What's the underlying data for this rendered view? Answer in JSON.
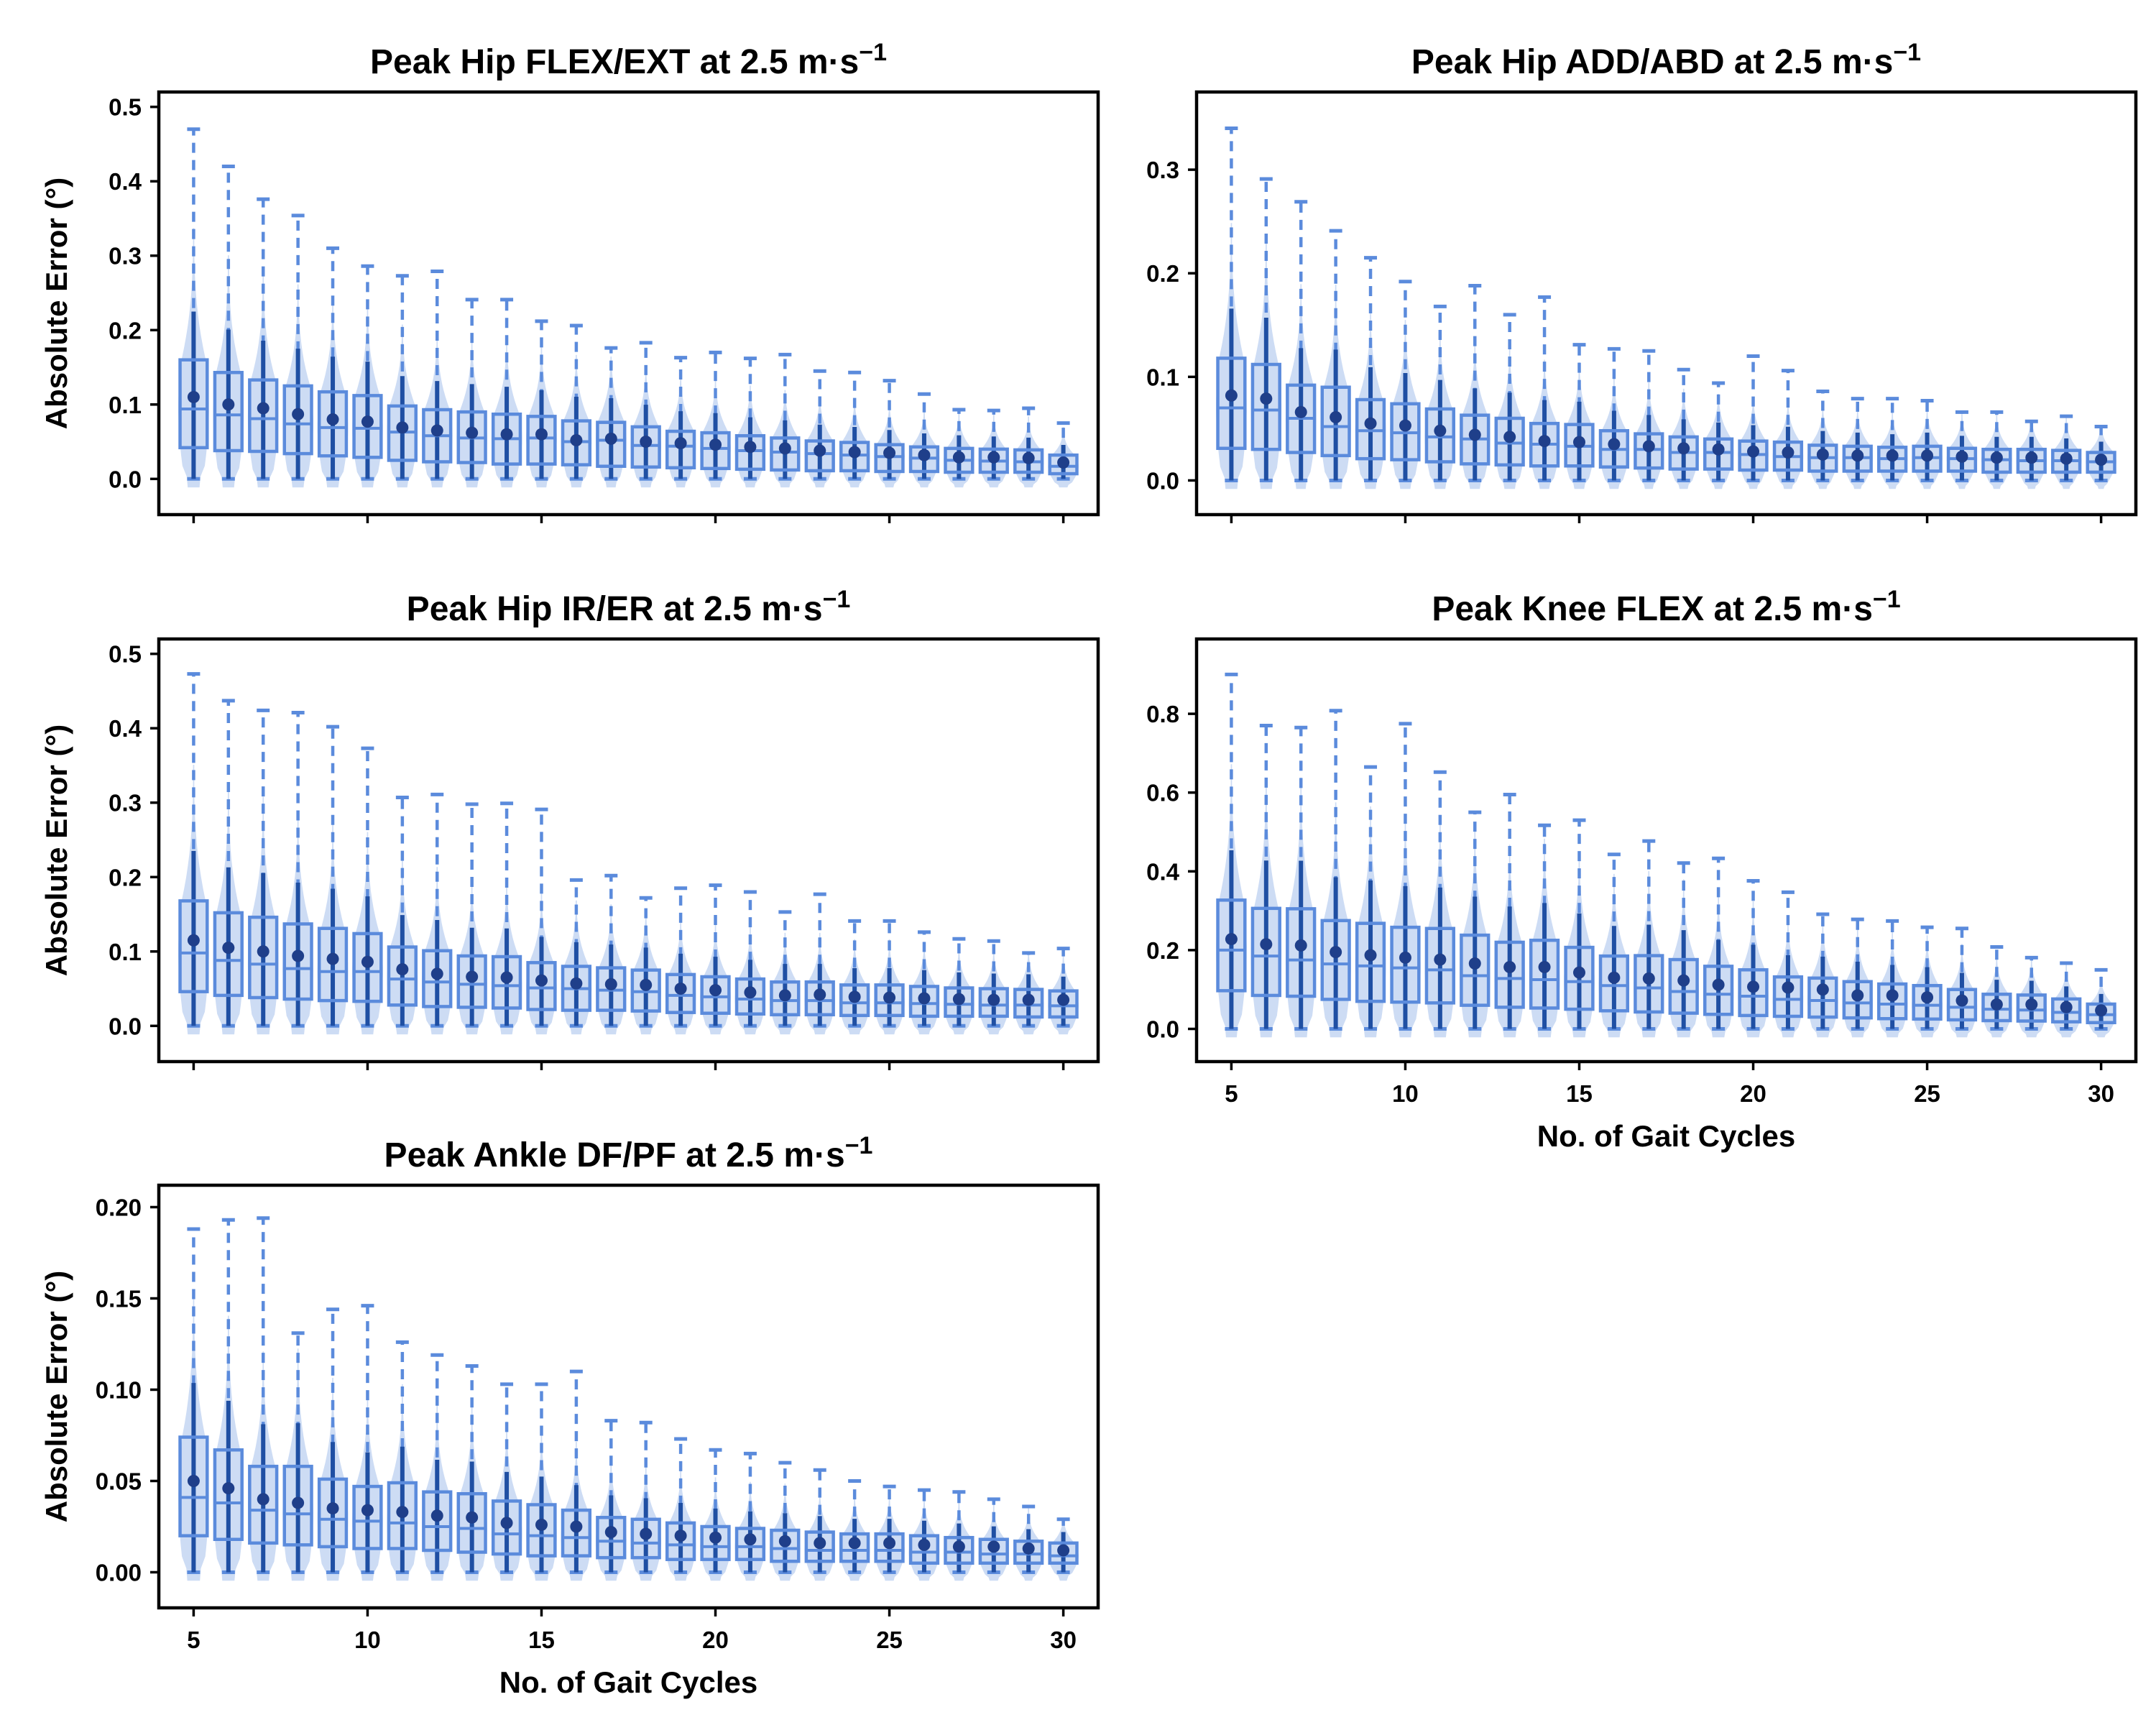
{
  "figure": {
    "x_axis_label": "No. of Gait Cycles",
    "y_axis_label": "Absolute Error (°)"
  },
  "colors": {
    "box_edge": "#5b8bdc",
    "violin_fill": "#c4d6f2",
    "median_line": "#5b8bdc",
    "mean_dot": "#1f3f8a",
    "whisker_band": "#1f4fa3",
    "axis": "#000000"
  },
  "chart_data": [
    {
      "type": "box",
      "title": "Peak Hip FLEX/EXT at 2.5 m·s",
      "title_superscript": "−1",
      "xlabel": "",
      "ylabel": "Absolute Error (°)",
      "x_ticks": [
        5,
        10,
        15,
        20,
        25,
        30
      ],
      "y_ticks": [
        0.0,
        0.1,
        0.2,
        0.3,
        0.4,
        0.5
      ],
      "y_tick_labels": [
        "0.0",
        "0.1",
        "0.2",
        "0.3",
        "0.4",
        "0.5"
      ],
      "ylim": [
        -0.048,
        0.52
      ],
      "x": [
        5,
        6,
        7,
        8,
        9,
        10,
        11,
        12,
        13,
        14,
        15,
        16,
        17,
        18,
        19,
        20,
        21,
        22,
        23,
        24,
        25,
        26,
        27,
        28,
        29,
        30
      ],
      "upper_whisker": [
        0.47,
        0.42,
        0.376,
        0.354,
        0.31,
        0.286,
        0.273,
        0.279,
        0.241,
        0.241,
        0.212,
        0.206,
        0.176,
        0.183,
        0.163,
        0.17,
        0.162,
        0.167,
        0.145,
        0.143,
        0.132,
        0.114,
        0.093,
        0.092,
        0.095,
        0.075
      ],
      "q3": [
        0.16,
        0.143,
        0.133,
        0.125,
        0.117,
        0.112,
        0.098,
        0.093,
        0.09,
        0.087,
        0.084,
        0.078,
        0.076,
        0.07,
        0.064,
        0.062,
        0.058,
        0.055,
        0.051,
        0.049,
        0.046,
        0.043,
        0.041,
        0.04,
        0.039,
        0.032
      ],
      "median": [
        0.094,
        0.086,
        0.081,
        0.074,
        0.069,
        0.068,
        0.063,
        0.058,
        0.055,
        0.054,
        0.055,
        0.05,
        0.052,
        0.045,
        0.044,
        0.041,
        0.038,
        0.036,
        0.034,
        0.032,
        0.03,
        0.028,
        0.025,
        0.024,
        0.023,
        0.017
      ],
      "q1": [
        0.042,
        0.038,
        0.037,
        0.034,
        0.031,
        0.029,
        0.025,
        0.023,
        0.022,
        0.02,
        0.02,
        0.019,
        0.017,
        0.016,
        0.015,
        0.014,
        0.013,
        0.012,
        0.011,
        0.011,
        0.01,
        0.01,
        0.009,
        0.009,
        0.009,
        0.007
      ],
      "mean": [
        0.11,
        0.1,
        0.095,
        0.087,
        0.08,
        0.077,
        0.069,
        0.065,
        0.062,
        0.06,
        0.06,
        0.052,
        0.054,
        0.05,
        0.048,
        0.046,
        0.043,
        0.041,
        0.038,
        0.036,
        0.035,
        0.032,
        0.029,
        0.029,
        0.028,
        0.022
      ],
      "lower_whisker": [
        0,
        0,
        0,
        0,
        0,
        0,
        0,
        0,
        0,
        0,
        0,
        0,
        0,
        0,
        0,
        0,
        0,
        0,
        0,
        0,
        0,
        0,
        0,
        0,
        0,
        0
      ]
    },
    {
      "type": "box",
      "title": "Peak Hip ADD/ABD at 2.5 m·s",
      "title_superscript": "−1",
      "xlabel": "",
      "ylabel": "",
      "x_ticks": [
        5,
        10,
        15,
        20,
        25,
        30
      ],
      "y_ticks": [
        0.0,
        0.1,
        0.2,
        0.3
      ],
      "y_tick_labels": [
        "0.0",
        "0.1",
        "0.2",
        "0.3"
      ],
      "ylim": [
        -0.033,
        0.375
      ],
      "x": [
        5,
        6,
        7,
        8,
        9,
        10,
        11,
        12,
        13,
        14,
        15,
        16,
        17,
        18,
        19,
        20,
        21,
        22,
        23,
        24,
        25,
        26,
        27,
        28,
        29,
        30
      ],
      "upper_whisker": [
        0.34,
        0.291,
        0.269,
        0.241,
        0.215,
        0.192,
        0.168,
        0.188,
        0.16,
        0.177,
        0.131,
        0.127,
        0.125,
        0.107,
        0.094,
        0.12,
        0.106,
        0.086,
        0.079,
        0.079,
        0.077,
        0.066,
        0.066,
        0.057,
        0.062,
        0.052
      ],
      "q3": [
        0.118,
        0.112,
        0.092,
        0.09,
        0.078,
        0.074,
        0.069,
        0.063,
        0.06,
        0.055,
        0.054,
        0.048,
        0.045,
        0.042,
        0.04,
        0.038,
        0.037,
        0.034,
        0.033,
        0.032,
        0.033,
        0.031,
        0.03,
        0.03,
        0.029,
        0.027
      ],
      "median": [
        0.07,
        0.068,
        0.06,
        0.052,
        0.048,
        0.046,
        0.042,
        0.04,
        0.036,
        0.035,
        0.033,
        0.03,
        0.03,
        0.027,
        0.027,
        0.025,
        0.023,
        0.022,
        0.022,
        0.021,
        0.022,
        0.021,
        0.02,
        0.019,
        0.019,
        0.018
      ],
      "q1": [
        0.031,
        0.03,
        0.027,
        0.024,
        0.021,
        0.02,
        0.018,
        0.016,
        0.015,
        0.014,
        0.014,
        0.013,
        0.012,
        0.011,
        0.011,
        0.01,
        0.01,
        0.009,
        0.009,
        0.009,
        0.009,
        0.009,
        0.008,
        0.008,
        0.008,
        0.008
      ],
      "mean": [
        0.082,
        0.079,
        0.066,
        0.061,
        0.055,
        0.053,
        0.048,
        0.044,
        0.042,
        0.038,
        0.037,
        0.035,
        0.033,
        0.031,
        0.03,
        0.028,
        0.027,
        0.025,
        0.024,
        0.024,
        0.024,
        0.023,
        0.022,
        0.022,
        0.021,
        0.02
      ],
      "lower_whisker": [
        0,
        0,
        0,
        0,
        0,
        0,
        0,
        0,
        0,
        0,
        0,
        0,
        0,
        0,
        0,
        0,
        0,
        0,
        0,
        0,
        0,
        0,
        0,
        0,
        0,
        0
      ]
    },
    {
      "type": "box",
      "title": "Peak Hip IR/ER at 2.5 m·s",
      "title_superscript": "−1",
      "xlabel": "",
      "ylabel": "Absolute Error (°)",
      "x_ticks": [
        5,
        10,
        15,
        20,
        25,
        30
      ],
      "y_ticks": [
        0.0,
        0.1,
        0.2,
        0.3,
        0.4,
        0.5
      ],
      "y_tick_labels": [
        "0.0",
        "0.1",
        "0.2",
        "0.3",
        "0.4",
        "0.5"
      ],
      "ylim": [
        -0.048,
        0.52
      ],
      "x": [
        5,
        6,
        7,
        8,
        9,
        10,
        11,
        12,
        13,
        14,
        15,
        16,
        17,
        18,
        19,
        20,
        21,
        22,
        23,
        24,
        25,
        26,
        27,
        28,
        29,
        30
      ],
      "upper_whisker": [
        0.473,
        0.437,
        0.424,
        0.421,
        0.402,
        0.373,
        0.307,
        0.311,
        0.298,
        0.299,
        0.291,
        0.196,
        0.202,
        0.172,
        0.185,
        0.189,
        0.18,
        0.153,
        0.177,
        0.141,
        0.141,
        0.126,
        0.117,
        0.114,
        0.098,
        0.104
      ],
      "q3": [
        0.168,
        0.152,
        0.146,
        0.137,
        0.131,
        0.124,
        0.106,
        0.101,
        0.094,
        0.093,
        0.085,
        0.08,
        0.078,
        0.075,
        0.069,
        0.066,
        0.063,
        0.059,
        0.059,
        0.055,
        0.055,
        0.053,
        0.051,
        0.05,
        0.049,
        0.047
      ],
      "median": [
        0.098,
        0.088,
        0.083,
        0.077,
        0.073,
        0.073,
        0.063,
        0.059,
        0.056,
        0.054,
        0.051,
        0.05,
        0.048,
        0.046,
        0.041,
        0.039,
        0.036,
        0.034,
        0.034,
        0.031,
        0.031,
        0.03,
        0.029,
        0.028,
        0.028,
        0.027
      ],
      "q1": [
        0.046,
        0.041,
        0.038,
        0.036,
        0.034,
        0.033,
        0.028,
        0.026,
        0.025,
        0.024,
        0.022,
        0.021,
        0.021,
        0.02,
        0.018,
        0.017,
        0.016,
        0.015,
        0.015,
        0.014,
        0.014,
        0.013,
        0.013,
        0.013,
        0.012,
        0.012
      ],
      "mean": [
        0.115,
        0.105,
        0.1,
        0.094,
        0.09,
        0.086,
        0.076,
        0.07,
        0.066,
        0.065,
        0.061,
        0.057,
        0.056,
        0.055,
        0.05,
        0.048,
        0.045,
        0.041,
        0.042,
        0.039,
        0.038,
        0.037,
        0.036,
        0.035,
        0.035,
        0.035
      ],
      "lower_whisker": [
        0,
        0,
        0,
        0,
        0,
        0,
        0,
        0,
        0,
        0,
        0,
        0,
        0,
        0,
        0,
        0,
        0,
        0,
        0,
        0,
        0,
        0,
        0,
        0,
        0,
        0
      ]
    },
    {
      "type": "box",
      "title": "Peak Knee FLEX at 2.5 m·s",
      "title_superscript": "−1",
      "xlabel": "No. of Gait Cycles",
      "ylabel": "",
      "x_ticks": [
        5,
        10,
        15,
        20,
        25,
        30
      ],
      "y_ticks": [
        0.0,
        0.2,
        0.4,
        0.6,
        0.8
      ],
      "y_tick_labels": [
        "0.0",
        "0.2",
        "0.4",
        "0.6",
        "0.8"
      ],
      "ylim": [
        -0.083,
        0.99
      ],
      "x": [
        5,
        6,
        7,
        8,
        9,
        10,
        11,
        12,
        13,
        14,
        15,
        16,
        17,
        18,
        19,
        20,
        21,
        22,
        23,
        24,
        25,
        26,
        27,
        28,
        29,
        30
      ],
      "upper_whisker": [
        0.9,
        0.77,
        0.765,
        0.808,
        0.665,
        0.775,
        0.652,
        0.55,
        0.595,
        0.517,
        0.53,
        0.443,
        0.477,
        0.421,
        0.433,
        0.376,
        0.347,
        0.291,
        0.278,
        0.274,
        0.258,
        0.255,
        0.208,
        0.181,
        0.167,
        0.15
      ],
      "q3": [
        0.327,
        0.306,
        0.305,
        0.275,
        0.268,
        0.258,
        0.255,
        0.238,
        0.22,
        0.225,
        0.207,
        0.185,
        0.186,
        0.176,
        0.159,
        0.15,
        0.132,
        0.129,
        0.12,
        0.114,
        0.11,
        0.1,
        0.088,
        0.086,
        0.076,
        0.063
      ],
      "median": [
        0.2,
        0.185,
        0.175,
        0.165,
        0.16,
        0.155,
        0.15,
        0.135,
        0.128,
        0.125,
        0.12,
        0.11,
        0.104,
        0.095,
        0.088,
        0.083,
        0.075,
        0.072,
        0.066,
        0.063,
        0.06,
        0.055,
        0.05,
        0.048,
        0.042,
        0.036
      ],
      "q1": [
        0.097,
        0.085,
        0.083,
        0.075,
        0.07,
        0.068,
        0.066,
        0.06,
        0.055,
        0.053,
        0.05,
        0.046,
        0.043,
        0.04,
        0.037,
        0.034,
        0.032,
        0.03,
        0.028,
        0.026,
        0.025,
        0.023,
        0.021,
        0.02,
        0.018,
        0.016
      ],
      "mean": [
        0.228,
        0.215,
        0.212,
        0.195,
        0.187,
        0.181,
        0.176,
        0.166,
        0.157,
        0.157,
        0.143,
        0.13,
        0.128,
        0.123,
        0.112,
        0.107,
        0.105,
        0.1,
        0.085,
        0.085,
        0.08,
        0.072,
        0.062,
        0.062,
        0.055,
        0.047
      ],
      "lower_whisker": [
        0,
        0,
        0,
        0,
        0,
        0,
        0,
        0,
        0,
        0,
        0,
        0,
        0,
        0,
        0,
        0,
        0,
        0,
        0,
        0,
        0,
        0,
        0,
        0,
        0,
        0
      ]
    },
    {
      "type": "box",
      "title": "Peak Ankle DF/PF at 2.5 m·s",
      "title_superscript": "−1",
      "xlabel": "No. of Gait Cycles",
      "ylabel": "Absolute Error (°)",
      "x_ticks": [
        5,
        10,
        15,
        20,
        25,
        30
      ],
      "y_ticks": [
        0.0,
        0.05,
        0.1,
        0.15,
        0.2
      ],
      "y_tick_labels": [
        "0.00",
        "0.05",
        "0.10",
        "0.15",
        "0.20"
      ],
      "ylim": [
        -0.0195,
        0.212
      ],
      "x": [
        5,
        6,
        7,
        8,
        9,
        10,
        11,
        12,
        13,
        14,
        15,
        16,
        17,
        18,
        19,
        20,
        21,
        22,
        23,
        24,
        25,
        26,
        27,
        28,
        29,
        30
      ],
      "upper_whisker": [
        0.188,
        0.193,
        0.194,
        0.131,
        0.144,
        0.146,
        0.126,
        0.119,
        0.113,
        0.103,
        0.103,
        0.11,
        0.083,
        0.082,
        0.073,
        0.067,
        0.065,
        0.06,
        0.056,
        0.05,
        0.047,
        0.045,
        0.044,
        0.04,
        0.036,
        0.029
      ],
      "q3": [
        0.074,
        0.067,
        0.058,
        0.058,
        0.051,
        0.047,
        0.049,
        0.044,
        0.043,
        0.039,
        0.037,
        0.034,
        0.03,
        0.029,
        0.027,
        0.025,
        0.024,
        0.023,
        0.022,
        0.021,
        0.021,
        0.02,
        0.019,
        0.018,
        0.017,
        0.016
      ],
      "median": [
        0.041,
        0.038,
        0.034,
        0.032,
        0.029,
        0.028,
        0.027,
        0.025,
        0.024,
        0.021,
        0.02,
        0.019,
        0.017,
        0.016,
        0.015,
        0.014,
        0.014,
        0.013,
        0.012,
        0.012,
        0.012,
        0.011,
        0.011,
        0.01,
        0.01,
        0.009
      ],
      "q1": [
        0.02,
        0.018,
        0.016,
        0.015,
        0.014,
        0.013,
        0.013,
        0.012,
        0.011,
        0.01,
        0.009,
        0.009,
        0.008,
        0.008,
        0.007,
        0.007,
        0.007,
        0.006,
        0.006,
        0.006,
        0.006,
        0.005,
        0.005,
        0.005,
        0.005,
        0.005
      ],
      "mean": [
        0.05,
        0.046,
        0.04,
        0.038,
        0.035,
        0.034,
        0.033,
        0.031,
        0.03,
        0.027,
        0.026,
        0.025,
        0.022,
        0.021,
        0.02,
        0.019,
        0.018,
        0.017,
        0.016,
        0.016,
        0.016,
        0.015,
        0.014,
        0.014,
        0.013,
        0.012
      ],
      "lower_whisker": [
        0,
        0,
        0,
        0,
        0,
        0,
        0,
        0,
        0,
        0,
        0,
        0,
        0,
        0,
        0,
        0,
        0,
        0,
        0,
        0,
        0,
        0,
        0,
        0,
        0,
        0
      ]
    }
  ]
}
